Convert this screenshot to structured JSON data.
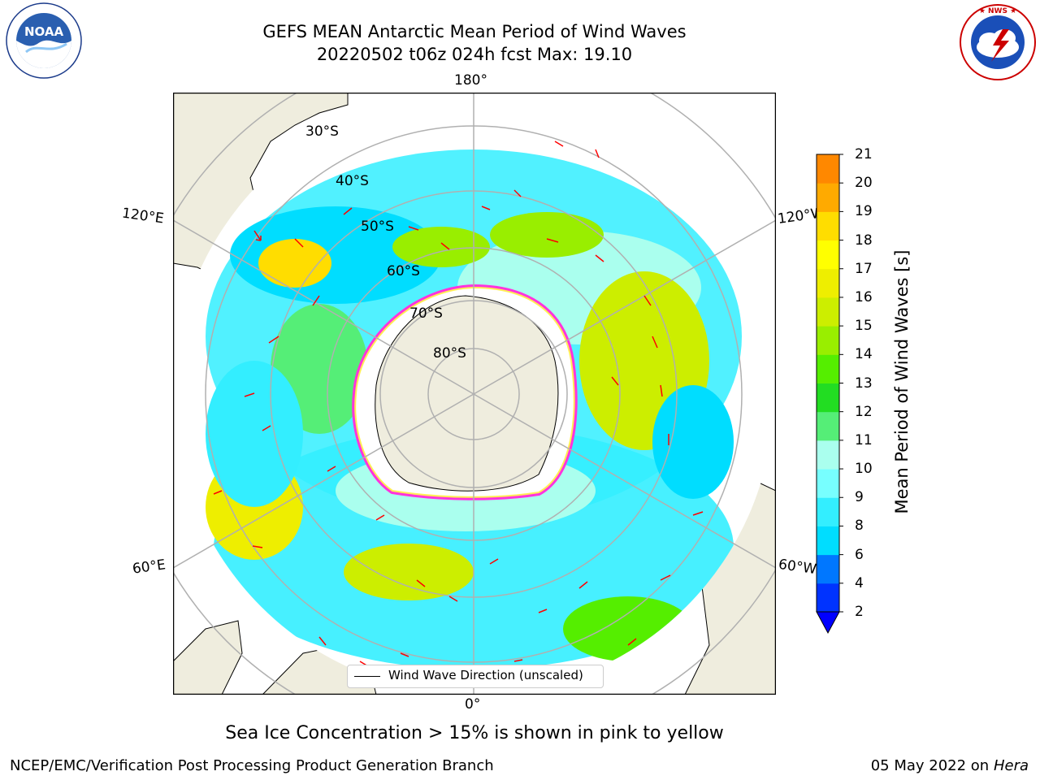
{
  "header": {
    "title_line1": "GEFS MEAN Antarctic Mean Period of Wind Waves",
    "title_line2": "20220502 t06z 024h fcst   Max: 19.10"
  },
  "logos": {
    "left": {
      "icon": "noaa-logo",
      "text": "NOAA",
      "ring_text": "NATIONAL OCEANIC AND ATMOSPHERIC ADMINISTRATION · U.S. DEPARTMENT OF COMMERCE"
    },
    "right": {
      "icon": "nws-logo",
      "ring_text": "NATIONAL WEATHER SERVICE"
    }
  },
  "map": {
    "projection": "south-polar-stereographic",
    "lon_labels": {
      "top": "180°",
      "bottom": "0°",
      "upper_left": "120°E",
      "upper_right": "120°W",
      "lower_left": "60°E",
      "lower_right": "60°W"
    },
    "lat_labels": [
      "30°S",
      "40°S",
      "50°S",
      "60°S",
      "70°S",
      "80°S"
    ],
    "legend": "Wind Wave Direction (unscaled)",
    "colors": {
      "land": "#efedde",
      "sea_ice_pink": "#ff33dd",
      "sea_ice_yellow": "#ffee55",
      "arrow": "#ff0000",
      "grid": "#b0b0b0"
    }
  },
  "colorbar": {
    "label": "Mean Period of Wind Waves [s]",
    "ticks": [
      "2",
      "4",
      "6",
      "8",
      "9",
      "10",
      "11",
      "12",
      "13",
      "14",
      "15",
      "16",
      "17",
      "18",
      "19",
      "20",
      "21"
    ],
    "colors": [
      "#0033ff",
      "#0077ff",
      "#00ddff",
      "#33eeff",
      "#77ffff",
      "#aaffee",
      "#55ee77",
      "#22dd22",
      "#55ee00",
      "#99ee00",
      "#ccee00",
      "#eeee00",
      "#ffff00",
      "#ffdd00",
      "#ffaa00",
      "#ff8800",
      "#ff6600",
      "#ff3300",
      "#ff0000"
    ],
    "under_color": "#0000ff"
  },
  "caption": "Sea Ice Concentration > 15% is shown in pink to yellow",
  "footer": {
    "left": "NCEP/EMC/Verification Post Processing Product Generation Branch",
    "date": "05 May 2022 on",
    "host": "Hera"
  }
}
